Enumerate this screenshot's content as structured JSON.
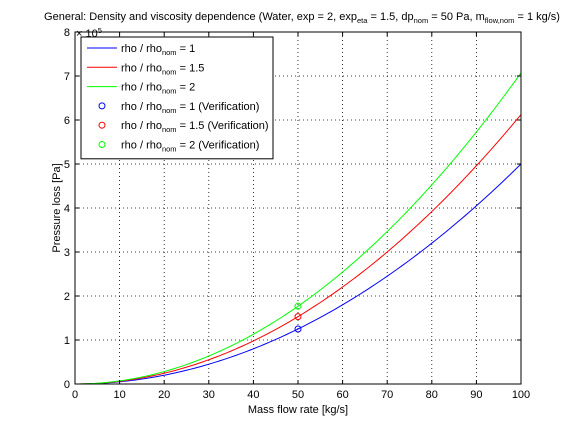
{
  "chart_data": {
    "type": "line",
    "title": {
      "prefix": "General: Density and viscosity dependence (Water, exp = 2, exp",
      "sub1": "eta",
      "mid1": " = 1.5, dp",
      "sub2": "nom",
      "mid2": " = 50 Pa, m",
      "sub3": "flow,nom",
      "suffix": " = 1 kg/s)"
    },
    "xlabel": "Mass flow rate [kg/s]",
    "ylabel": "Pressure loss [Pa]",
    "y_multiplier": "× 10",
    "y_multiplier_exp": "5",
    "xlim": [
      0,
      100
    ],
    "ylim": [
      0,
      800000
    ],
    "x_ticks": [
      0,
      10,
      20,
      30,
      40,
      50,
      60,
      70,
      80,
      90,
      100
    ],
    "y_ticks": [
      0,
      100000,
      200000,
      300000,
      400000,
      500000,
      600000,
      700000,
      800000
    ],
    "x_tick_labels": [
      "0",
      "10",
      "20",
      "30",
      "40",
      "50",
      "60",
      "70",
      "80",
      "90",
      "100"
    ],
    "y_tick_labels": [
      "0",
      "1",
      "2",
      "3",
      "4",
      "5",
      "6",
      "7",
      "8"
    ],
    "grid": true,
    "legend_position": "top-left",
    "series": [
      {
        "kind": "line",
        "label_pre": "rho / rho",
        "label_sub": "nom",
        "label_post": " = 1",
        "color": "#0000ff",
        "x": [
          0,
          100
        ],
        "coef": 50,
        "exponent": 2
      },
      {
        "kind": "line",
        "label_pre": "rho / rho",
        "label_sub": "nom",
        "label_post": " = 1.5",
        "color": "#ff0000",
        "x": [
          0,
          100
        ],
        "coef": 61.24,
        "exponent": 2
      },
      {
        "kind": "line",
        "label_pre": "rho / rho",
        "label_sub": "nom",
        "label_post": " = 2",
        "color": "#00ff00",
        "x": [
          0,
          100
        ],
        "coef": 70.71,
        "exponent": 2
      },
      {
        "kind": "marker",
        "label_pre": "rho / rho",
        "label_sub": "nom",
        "label_post": " = 1 (Verification)",
        "color": "#0000ff",
        "x": [
          50
        ],
        "y": [
          125000
        ]
      },
      {
        "kind": "marker",
        "label_pre": "rho / rho",
        "label_sub": "nom",
        "label_post": " = 1.5 (Verification)",
        "color": "#ff0000",
        "x": [
          50
        ],
        "y": [
          153100
        ]
      },
      {
        "kind": "marker",
        "label_pre": "rho / rho",
        "label_sub": "nom",
        "label_post": " = 2 (Verification)",
        "color": "#00ff00",
        "x": [
          50
        ],
        "y": [
          176800
        ]
      }
    ]
  }
}
